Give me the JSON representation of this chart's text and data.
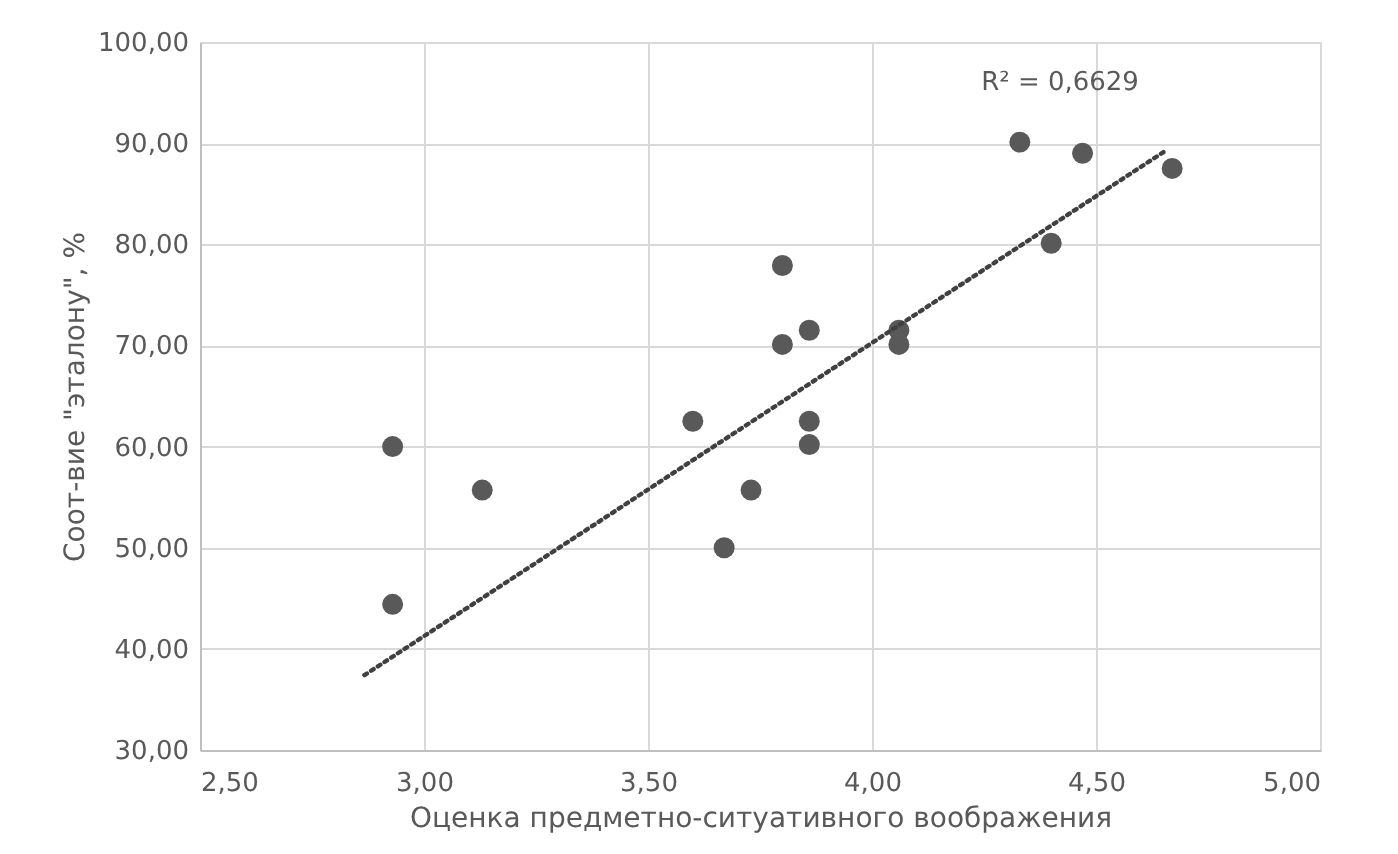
{
  "chart_data": {
    "type": "scatter",
    "xlabel": "Оценка предметно-ситуативного воображения",
    "ylabel": "Соот-вие \"эталону\", %",
    "x": [
      2.93,
      2.93,
      3.13,
      3.6,
      3.67,
      3.73,
      3.8,
      3.8,
      3.86,
      3.86,
      3.86,
      4.06,
      4.06,
      4.33,
      4.47,
      4.4,
      4.67
    ],
    "series": [
      {
        "color": "#595959",
        "values": [
          60,
          44.4,
          55.7,
          62.5,
          50,
          55.7,
          77.9,
          70.1,
          71.5,
          62.5,
          60.2,
          71.5,
          70.1,
          90.1,
          89,
          80.1,
          87.5
        ]
      },
      {
        "type": "line",
        "line_style": "dotted",
        "marker": "none",
        "color": "#404040",
        "x": [
          2.867,
          4.657
        ],
        "values": [
          37.4,
          89.3
        ]
      }
    ],
    "marker": "circle",
    "grid": true,
    "xlim": [
      2.5,
      5.0
    ],
    "xticks": [
      {
        "value": 2.5,
        "label": "2,50"
      },
      {
        "value": 3.0,
        "label": "3,00"
      },
      {
        "value": 3.5,
        "label": "3,50"
      },
      {
        "value": 4.0,
        "label": "4,00"
      },
      {
        "value": 4.5,
        "label": "4,50"
      },
      {
        "value": 5.0,
        "label": "5,00"
      }
    ],
    "ylim": [
      30,
      100
    ],
    "yticks": [
      {
        "value": 30,
        "label": "30,00"
      },
      {
        "value": 40,
        "label": "40,00"
      },
      {
        "value": 50,
        "label": "50,00"
      },
      {
        "value": 60,
        "label": "60,00"
      },
      {
        "value": 70,
        "label": "70,00"
      },
      {
        "value": 80,
        "label": "80,00"
      },
      {
        "value": 90,
        "label": "90,00"
      },
      {
        "value": 100,
        "label": "100,00"
      }
    ],
    "annotations": [
      "R² = 0,6629"
    ]
  }
}
